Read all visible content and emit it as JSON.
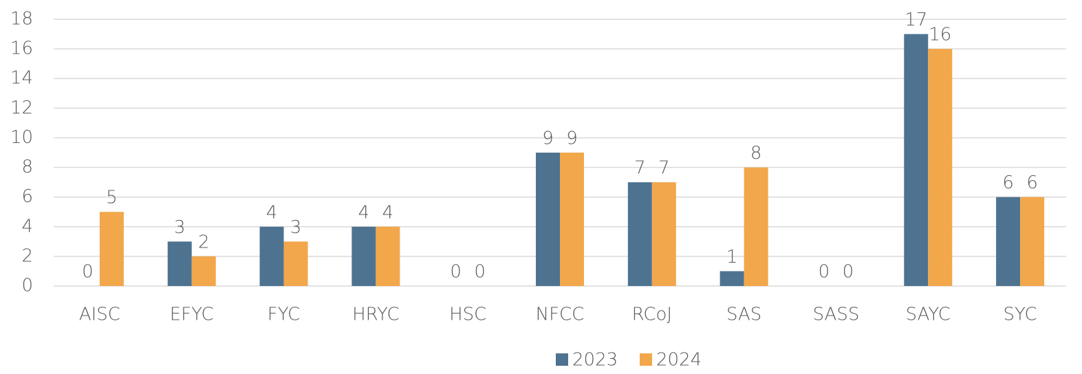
{
  "chart_data": {
    "type": "bar",
    "categories": [
      "AISC",
      "EFYC",
      "FYC",
      "HRYC",
      "HSC",
      "NFCC",
      "RCoJ",
      "SAS",
      "SASS",
      "SAYC",
      "SYC"
    ],
    "series": [
      {
        "name": "2023",
        "color": "#4e7391",
        "values": [
          0,
          3,
          4,
          4,
          0,
          9,
          7,
          1,
          0,
          17,
          6
        ]
      },
      {
        "name": "2024",
        "color": "#f2a74b",
        "values": [
          5,
          2,
          3,
          4,
          0,
          9,
          7,
          8,
          0,
          16,
          6
        ]
      }
    ],
    "ylim": [
      0,
      18
    ],
    "yticks": [
      0,
      2,
      4,
      6,
      8,
      10,
      12,
      14,
      16,
      18
    ],
    "grid": true,
    "legend": "bottom"
  }
}
